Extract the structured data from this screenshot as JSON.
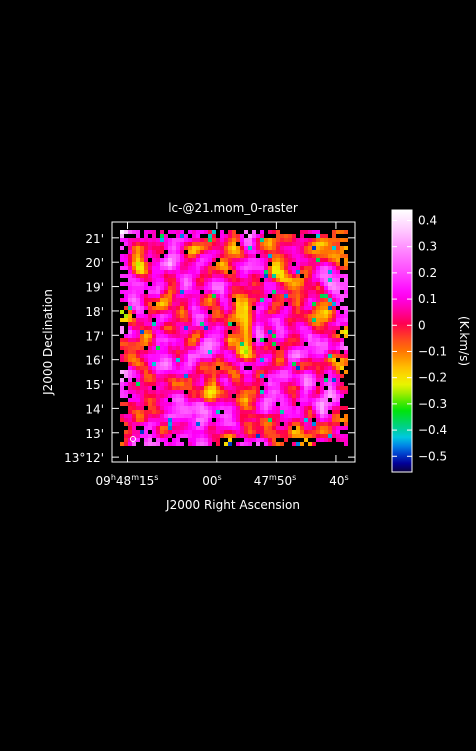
{
  "chart_data": {
    "type": "heatmap",
    "title": "lc-@21.mom_0-raster",
    "xlabel": "J2000 Right Ascension",
    "ylabel": "J2000 Declination",
    "x_ticks": [
      {
        "h": "09",
        "hs": "h",
        "m": "48",
        "ms": "m",
        "s": "15",
        "ss": "s",
        "ra_s": 35295
      },
      {
        "s": "00",
        "ss": "s",
        "ra_s": 35280
      },
      {
        "m": "47",
        "ms": "m",
        "s": "50",
        "ss": "s",
        "ra_s": 35270
      },
      {
        "s": "40",
        "ss": "s",
        "ra_s": 35260
      }
    ],
    "y_ticks": [
      {
        "label": "13°12'",
        "dec_arcmin": 12
      },
      {
        "label": "13'",
        "dec_arcmin": 13
      },
      {
        "label": "14'",
        "dec_arcmin": 14
      },
      {
        "label": "15'",
        "dec_arcmin": 15
      },
      {
        "label": "16'",
        "dec_arcmin": 16
      },
      {
        "label": "17'",
        "dec_arcmin": 17
      },
      {
        "label": "18'",
        "dec_arcmin": 18
      },
      {
        "label": "19'",
        "dec_arcmin": 19
      },
      {
        "label": "20'",
        "dec_arcmin": 20
      },
      {
        "label": "21'",
        "dec_arcmin": 21
      }
    ],
    "xlim_ra_s": [
      35297.6,
      35256.8
    ],
    "ylim_dec_arcmin": [
      11.8,
      21.65
    ],
    "colorbar": {
      "label": "(K.km/s)",
      "range": [
        -0.56,
        0.44
      ],
      "ticks": [
        "0.4",
        "0.3",
        "0.2",
        "0.1",
        "0",
        "−0.1",
        "−0.2",
        "−0.3",
        "−0.4",
        "−0.5"
      ],
      "tick_values": [
        0.4,
        0.3,
        0.2,
        0.1,
        0,
        -0.1,
        -0.2,
        -0.3,
        -0.4,
        -0.5
      ]
    },
    "grid": false
  }
}
